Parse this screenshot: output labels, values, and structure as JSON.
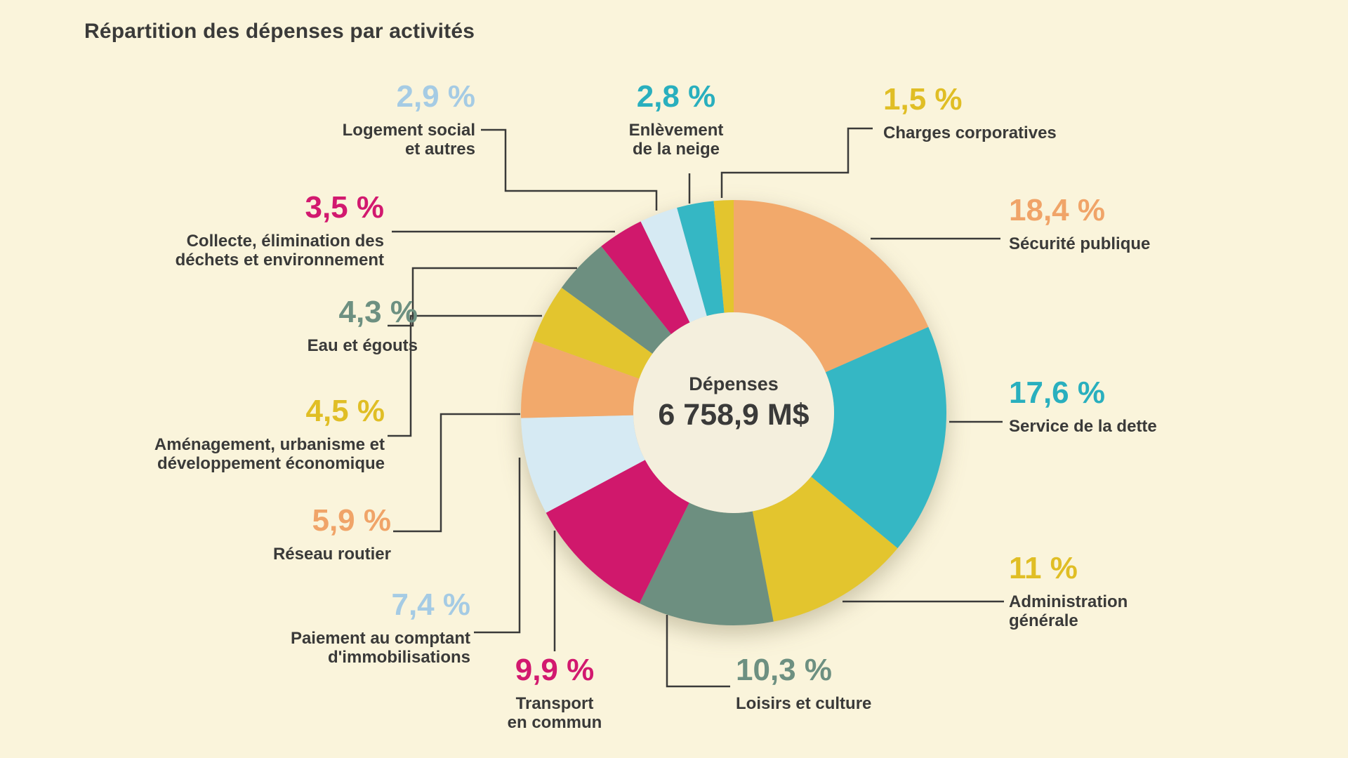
{
  "background": "#FAF4DB",
  "title": "Répartition des dépenses par activités",
  "center": {
    "line1": "Dépenses",
    "line2": "6 758,9 M$"
  },
  "chart_data": {
    "type": "pie",
    "subtype": "donut",
    "title": "Répartition des dépenses par activités",
    "center_title": "Dépenses",
    "center_total": "6 758,9 M$",
    "unit": "%",
    "start_angle_deg": 0,
    "direction": "clockwise",
    "legend_position": "around",
    "segments": [
      {
        "label": "Sécurité publique",
        "pct_label": "18,4 %",
        "value": 18.4,
        "color": "#F2A96B",
        "text_color": "#F0A468"
      },
      {
        "label": "Service de la dette",
        "pct_label": "17,6 %",
        "value": 17.6,
        "color": "#35B7C4",
        "text_color": "#29AFBE"
      },
      {
        "label": "Administration\ngénérale",
        "pct_label": "11 %",
        "value": 11.0,
        "color": "#E3C52E",
        "text_color": "#E0BE25"
      },
      {
        "label": "Loisirs et culture",
        "pct_label": "10,3 %",
        "value": 10.3,
        "color": "#6D8F80",
        "text_color": "#6D9081"
      },
      {
        "label": "Transport\nen commun",
        "pct_label": "9,9 %",
        "value": 9.9,
        "color": "#D0186C",
        "text_color": "#D2196F"
      },
      {
        "label": "Paiement au comptant\nd'immobilisations",
        "pct_label": "7,4 %",
        "value": 7.4,
        "color": "#D6EAF3",
        "text_color": "#A5CBE4"
      },
      {
        "label": "Réseau routier",
        "pct_label": "5,9 %",
        "value": 5.9,
        "color": "#F2A96B",
        "text_color": "#F0A468"
      },
      {
        "label": "Aménagement, urbanisme et\ndéveloppement économique",
        "pct_label": "4,5 %",
        "value": 4.5,
        "color": "#E3C52E",
        "text_color": "#E0BE25"
      },
      {
        "label": "Eau et égouts",
        "pct_label": "4,3 %",
        "value": 4.3,
        "color": "#6D8F80",
        "text_color": "#6D9081"
      },
      {
        "label": "Collecte, élimination des\ndéchets et environnement",
        "pct_label": "3,5 %",
        "value": 3.5,
        "color": "#D0186C",
        "text_color": "#D2196F"
      },
      {
        "label": "Logement social\net autres",
        "pct_label": "2,9 %",
        "value": 2.9,
        "color": "#D6EAF3",
        "text_color": "#A5CBE4"
      },
      {
        "label": "Enlèvement\nde la neige",
        "pct_label": "2,8 %",
        "value": 2.8,
        "color": "#35B7C4",
        "text_color": "#29AFBE"
      },
      {
        "label": "Charges corporatives",
        "pct_label": "1,5 %",
        "value": 1.5,
        "color": "#E3C52E",
        "text_color": "#E0BE25"
      }
    ]
  }
}
